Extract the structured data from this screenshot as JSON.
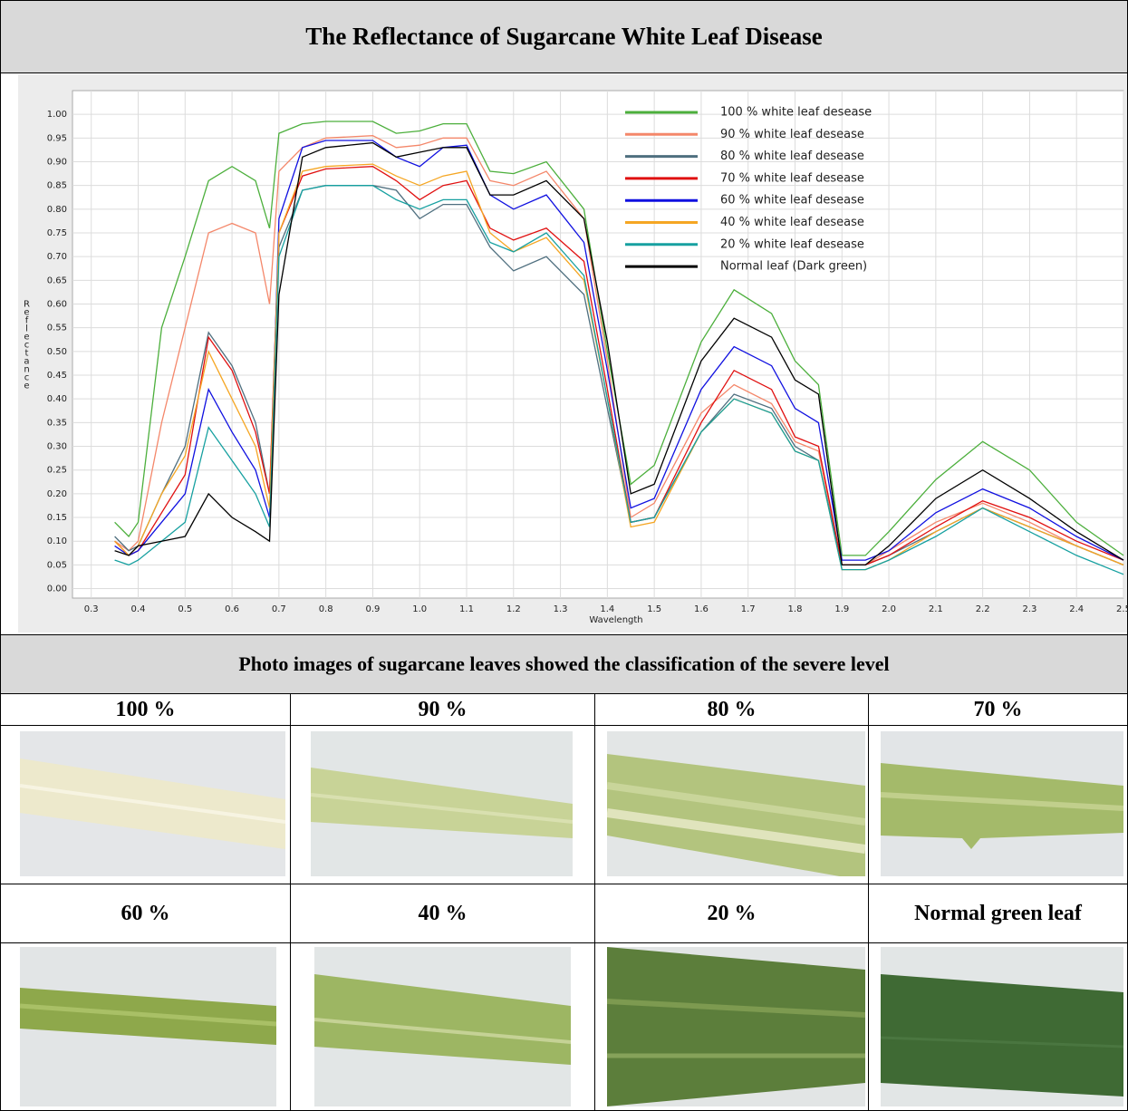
{
  "title": "The Reflectance of Sugarcane White Leaf Disease",
  "chart_data": {
    "type": "line",
    "xlabel": "Wavelength",
    "ylabel": "Reflectance",
    "xlim": [
      0.26,
      2.5
    ],
    "ylim": [
      -0.02,
      1.05
    ],
    "xticks": [
      0.3,
      0.4,
      0.5,
      0.6,
      0.7,
      0.8,
      0.9,
      {
        "value": 1,
        "label": "1.0"
      },
      1.1,
      1.2,
      1.3,
      1.4,
      1.5,
      1.6,
      1.7,
      1.8,
      1.9,
      {
        "value": 2,
        "label": "2.0"
      },
      2.1,
      2.2,
      2.3,
      2.4,
      2.5
    ],
    "yticks": [
      {
        "value": 0,
        "label": "0.00"
      },
      {
        "value": 0.05,
        "label": "0.05"
      },
      {
        "value": 0.1,
        "label": "0.10"
      },
      {
        "value": 0.15,
        "label": "0.15"
      },
      {
        "value": 0.2,
        "label": "0.20"
      },
      {
        "value": 0.25,
        "label": "0.25"
      },
      {
        "value": 0.3,
        "label": "0.30"
      },
      {
        "value": 0.35,
        "label": "0.35"
      },
      {
        "value": 0.4,
        "label": "0.40"
      },
      {
        "value": 0.45,
        "label": "0.45"
      },
      {
        "value": 0.5,
        "label": "0.50"
      },
      {
        "value": 0.55,
        "label": "0.55"
      },
      {
        "value": 0.6,
        "label": "0.60"
      },
      {
        "value": 0.65,
        "label": "0.65"
      },
      {
        "value": 0.7,
        "label": "0.70"
      },
      {
        "value": 0.75,
        "label": "0.75"
      },
      {
        "value": 0.8,
        "label": "0.80"
      },
      {
        "value": 0.85,
        "label": "0.85"
      },
      {
        "value": 0.9,
        "label": "0.90"
      },
      {
        "value": 0.95,
        "label": "0.95"
      },
      {
        "value": 1,
        "label": "1.00"
      }
    ],
    "grid": true,
    "legend": "upper right",
    "x": [
      0.35,
      0.38,
      0.4,
      0.45,
      0.5,
      0.55,
      0.6,
      0.65,
      0.68,
      0.7,
      0.75,
      0.8,
      0.9,
      0.95,
      1.0,
      1.05,
      1.1,
      1.15,
      1.2,
      1.27,
      1.35,
      1.4,
      1.45,
      1.5,
      1.6,
      1.67,
      1.75,
      1.8,
      1.85,
      1.9,
      1.95,
      2.0,
      2.1,
      2.2,
      2.3,
      2.4,
      2.5
    ],
    "series": [
      {
        "name": "100 % white leaf desease",
        "color": "#4caf3c",
        "values": [
          0.14,
          0.11,
          0.14,
          0.55,
          0.7,
          0.86,
          0.89,
          0.86,
          0.76,
          0.96,
          0.98,
          0.985,
          0.985,
          0.96,
          0.965,
          0.98,
          0.98,
          0.88,
          0.875,
          0.9,
          0.8,
          0.5,
          0.22,
          0.26,
          0.52,
          0.63,
          0.58,
          0.48,
          0.43,
          0.07,
          0.07,
          0.12,
          0.23,
          0.31,
          0.25,
          0.14,
          0.07
        ]
      },
      {
        "name": "90 % white leaf desease",
        "color": "#f4876a",
        "values": [
          0.1,
          0.08,
          0.1,
          0.35,
          0.55,
          0.75,
          0.77,
          0.75,
          0.6,
          0.88,
          0.93,
          0.95,
          0.955,
          0.93,
          0.935,
          0.95,
          0.95,
          0.86,
          0.85,
          0.88,
          0.78,
          0.48,
          0.15,
          0.18,
          0.37,
          0.43,
          0.39,
          0.31,
          0.29,
          0.05,
          0.05,
          0.08,
          0.14,
          0.18,
          0.14,
          0.09,
          0.05
        ]
      },
      {
        "name": "80 % white leaf desease",
        "color": "#4f6f7f",
        "values": [
          0.11,
          0.08,
          0.09,
          0.2,
          0.3,
          0.54,
          0.47,
          0.35,
          0.2,
          0.72,
          0.84,
          0.85,
          0.85,
          0.84,
          0.78,
          0.81,
          0.81,
          0.72,
          0.67,
          0.7,
          0.62,
          0.38,
          0.14,
          0.15,
          0.33,
          0.41,
          0.38,
          0.3,
          0.27,
          0.05,
          0.05,
          0.07,
          0.12,
          0.17,
          0.13,
          0.09,
          0.05
        ]
      },
      {
        "name": "70 % white leaf desease",
        "color": "#e01010",
        "values": [
          0.1,
          0.07,
          0.08,
          0.16,
          0.24,
          0.53,
          0.46,
          0.33,
          0.2,
          0.75,
          0.87,
          0.885,
          0.89,
          0.86,
          0.82,
          0.85,
          0.86,
          0.76,
          0.735,
          0.76,
          0.69,
          0.42,
          0.14,
          0.15,
          0.35,
          0.46,
          0.42,
          0.32,
          0.3,
          0.05,
          0.05,
          0.07,
          0.13,
          0.185,
          0.15,
          0.1,
          0.06
        ]
      },
      {
        "name": "60 % white leaf desease",
        "color": "#1010e0",
        "values": [
          0.09,
          0.07,
          0.08,
          0.14,
          0.2,
          0.42,
          0.33,
          0.25,
          0.15,
          0.78,
          0.93,
          0.945,
          0.945,
          0.91,
          0.89,
          0.93,
          0.935,
          0.83,
          0.8,
          0.83,
          0.73,
          0.46,
          0.17,
          0.19,
          0.42,
          0.51,
          0.47,
          0.38,
          0.35,
          0.06,
          0.06,
          0.08,
          0.16,
          0.21,
          0.17,
          0.11,
          0.06
        ]
      },
      {
        "name": "40 % white leaf desease",
        "color": "#f5a623",
        "values": [
          0.1,
          0.07,
          0.09,
          0.2,
          0.28,
          0.5,
          0.4,
          0.3,
          0.17,
          0.75,
          0.88,
          0.89,
          0.895,
          0.87,
          0.85,
          0.87,
          0.88,
          0.75,
          0.71,
          0.74,
          0.65,
          0.4,
          0.13,
          0.14,
          0.33,
          0.4,
          0.37,
          0.29,
          0.27,
          0.04,
          0.04,
          0.06,
          0.12,
          0.17,
          0.13,
          0.09,
          0.05
        ]
      },
      {
        "name": "20 % white leaf desease",
        "color": "#16a0a0",
        "values": [
          0.06,
          0.05,
          0.06,
          0.1,
          0.14,
          0.34,
          0.27,
          0.2,
          0.13,
          0.7,
          0.84,
          0.85,
          0.85,
          0.82,
          0.8,
          0.82,
          0.82,
          0.73,
          0.71,
          0.75,
          0.66,
          0.4,
          0.14,
          0.15,
          0.33,
          0.4,
          0.37,
          0.29,
          0.27,
          0.04,
          0.04,
          0.06,
          0.11,
          0.17,
          0.12,
          0.07,
          0.03
        ]
      },
      {
        "name": "Normal leaf (Dark green)",
        "color": "#000000",
        "values": [
          0.08,
          0.07,
          0.09,
          0.1,
          0.11,
          0.2,
          0.15,
          0.12,
          0.1,
          0.62,
          0.91,
          0.93,
          0.94,
          0.91,
          0.92,
          0.93,
          0.93,
          0.83,
          0.83,
          0.86,
          0.78,
          0.52,
          0.2,
          0.22,
          0.48,
          0.57,
          0.53,
          0.44,
          0.41,
          0.05,
          0.05,
          0.09,
          0.19,
          0.25,
          0.19,
          0.12,
          0.06
        ]
      }
    ]
  },
  "photos": {
    "title": "Photo images  of  sugarcane leaves showed the classification of the severe level",
    "labels": [
      "100 %",
      "90 %",
      "80 %",
      "70 %",
      "60 %",
      "40 %",
      "20 %",
      "Normal green leaf"
    ]
  }
}
